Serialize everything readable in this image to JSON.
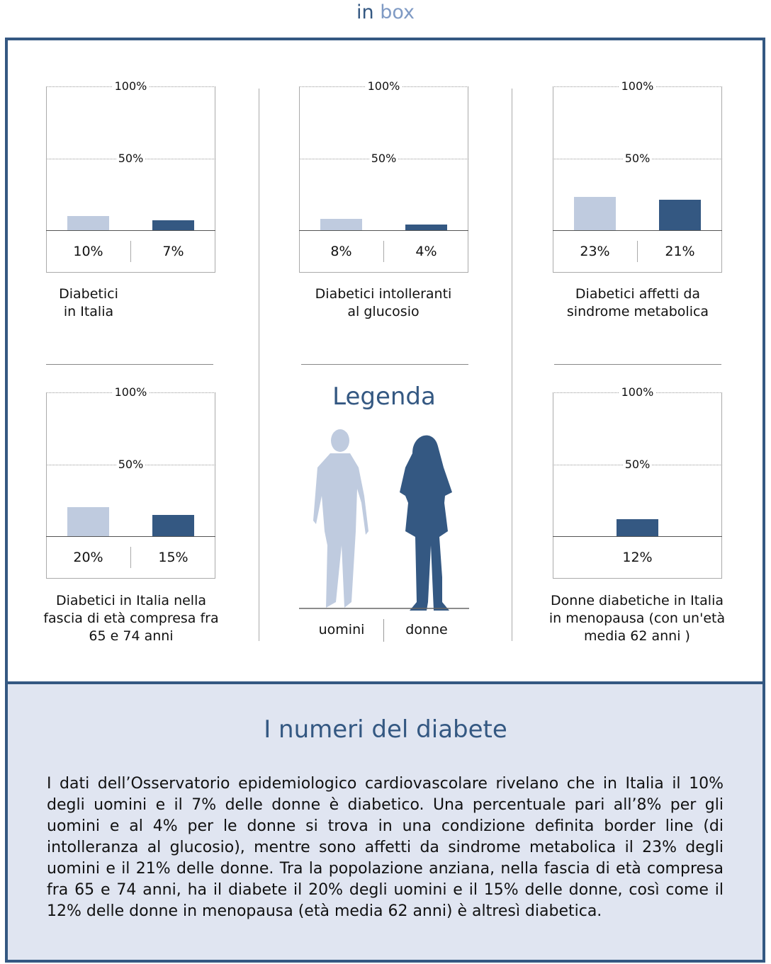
{
  "brand": {
    "part1": "in",
    "part2": " box",
    "color1": "#345882",
    "color2": "#7f9ac4"
  },
  "colors": {
    "uomini": "#bfcbdf",
    "donne": "#345882",
    "panel_bg": "#e0e5f1"
  },
  "legend": {
    "title": "Legenda",
    "items": [
      {
        "label": "uomini",
        "color": "#bfcbdf"
      },
      {
        "label": "donne",
        "color": "#345882"
      }
    ]
  },
  "chart_data": [
    {
      "type": "bar",
      "title": "Diabetici\nin Italia",
      "ylim": [
        0,
        100
      ],
      "ticks": [
        "100%",
        "50%"
      ],
      "categories": [
        "uomini",
        "donne"
      ],
      "values": [
        10,
        7
      ],
      "labels": [
        "10%",
        "7%"
      ]
    },
    {
      "type": "bar",
      "title": "Diabetici intolleranti\nal glucosio",
      "ylim": [
        0,
        100
      ],
      "ticks": [
        "100%",
        "50%"
      ],
      "categories": [
        "uomini",
        "donne"
      ],
      "values": [
        8,
        4
      ],
      "labels": [
        "8%",
        "4%"
      ]
    },
    {
      "type": "bar",
      "title": "Diabetici affetti da\nsindrome metabolica",
      "ylim": [
        0,
        100
      ],
      "ticks": [
        "100%",
        "50%"
      ],
      "categories": [
        "uomini",
        "donne"
      ],
      "values": [
        23,
        21
      ],
      "labels": [
        "23%",
        "21%"
      ]
    },
    {
      "type": "bar",
      "title": "Diabetici in Italia nella\nfascia di età compresa fra\n65 e 74 anni",
      "ylim": [
        0,
        100
      ],
      "ticks": [
        "100%",
        "50%"
      ],
      "categories": [
        "uomini",
        "donne"
      ],
      "values": [
        20,
        15
      ],
      "labels": [
        "20%",
        "15%"
      ]
    },
    {
      "type": "bar",
      "title": "Donne diabetiche in Italia\nin menopausa (con un'età\nmedia 62 anni )",
      "ylim": [
        0,
        100
      ],
      "ticks": [
        "100%",
        "50%"
      ],
      "categories": [
        "donne"
      ],
      "values": [
        12
      ],
      "labels": [
        "12%"
      ]
    }
  ],
  "section": {
    "title": "I numeri del diabete",
    "text": "I dati dell’Osservatorio epidemiologico cardiovascolare rivelano che in Italia il 10% degli uomini e il 7% delle donne è diabetico. Una percentuale pari all’8% per gli uomini e al 4% per le donne si trova in una condizione definita border line (di intolleranza al glucosio), mentre sono affetti da sindrome metabolica il 23% degli uomini e il 21% delle donne. Tra la popolazione anziana, nella fascia di età compresa fra 65 e 74 anni, ha il diabete il 20% degli uomini e il 15% delle donne, così come il 12% delle donne in menopausa (età media 62 anni)  è altresì diabetica."
  }
}
